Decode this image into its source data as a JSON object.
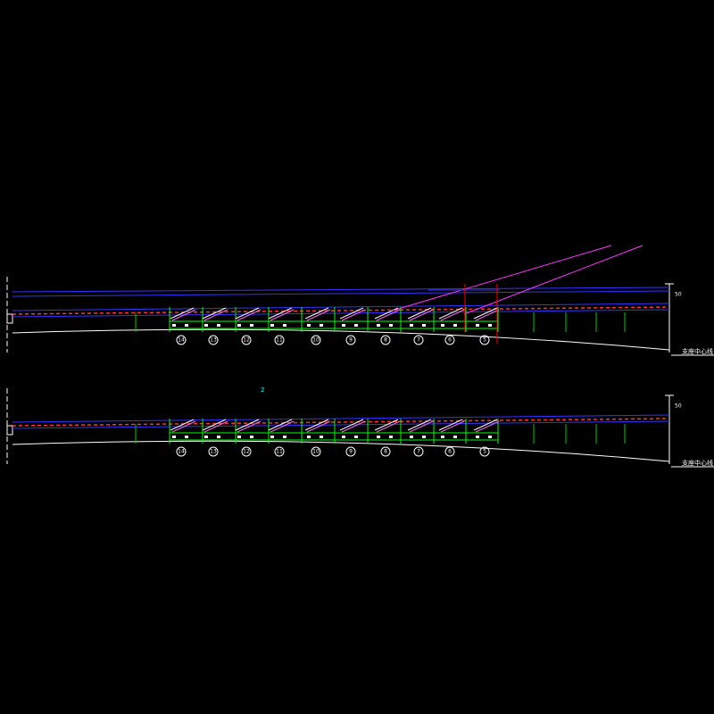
{
  "views": [
    {
      "labels": [
        "14",
        "13",
        "12",
        "11",
        "10",
        "9",
        "8",
        "7",
        "6",
        "5"
      ],
      "dim": "50",
      "side_label": "支座中心线"
    },
    {
      "labels": [
        "14",
        "13",
        "12",
        "11",
        "10",
        "9",
        "8",
        "7",
        "6",
        "5"
      ],
      "dim": "50",
      "side_label": "支座中心线"
    }
  ],
  "note": "2"
}
